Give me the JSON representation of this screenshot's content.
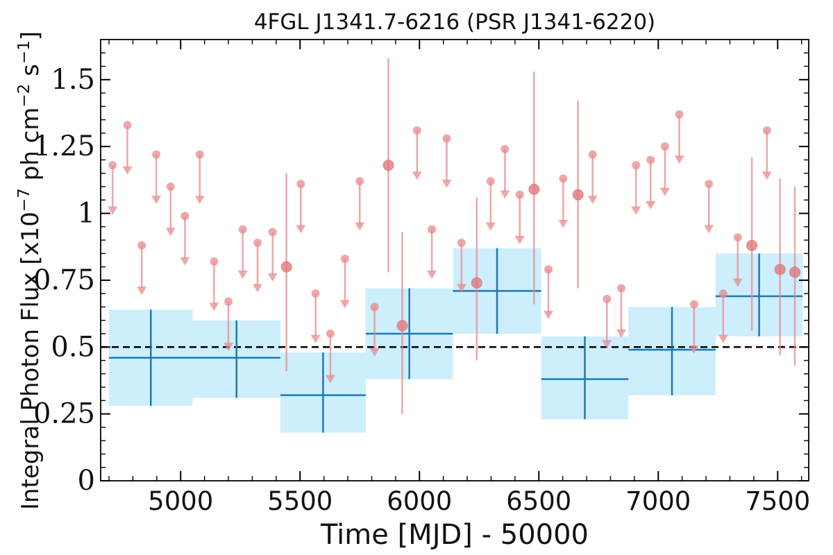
{
  "chart_data": {
    "type": "scatter",
    "title": "4FGL J1341.7-6216 (PSR J1341-6220)",
    "xlabel": "Time [MJD] - 50000",
    "ylabel_parts": {
      "pre": "Integral Photon Flux [x10",
      "exp1": "−7",
      "mid": " ph cm",
      "exp2": "−2",
      "s": " s",
      "exp3": "−1",
      "post": "]"
    },
    "xlim": [
      4665,
      7630
    ],
    "ylim": [
      0,
      1.65
    ],
    "x_ticks": [
      5000,
      5500,
      6000,
      6500,
      7000,
      7500
    ],
    "x_tick_labels": [
      "5000",
      "5500",
      "6000",
      "6500",
      "7000",
      "7500"
    ],
    "y_ticks": [
      0,
      0.25,
      0.5,
      0.75,
      1,
      1.25,
      1.5
    ],
    "y_tick_labels": [
      "0",
      "0.25",
      "0.5",
      "0.75",
      "1",
      "1.25",
      "1.5"
    ],
    "reference_line": {
      "y": 0.5,
      "style": "dashed",
      "color": "#000000"
    },
    "grid": false,
    "colors": {
      "bins": "#1f77b4",
      "band": "#cdeefc",
      "points": "#e8898c",
      "arrows": "#e8898c"
    },
    "series": [
      {
        "kind": "binned-with-error-band",
        "bins": [
          {
            "x0": 4700,
            "x1": 5050,
            "y": 0.46,
            "ylo": 0.28,
            "yhi": 0.64
          },
          {
            "x0": 5050,
            "x1": 5418,
            "y": 0.46,
            "ylo": 0.31,
            "yhi": 0.6
          },
          {
            "x0": 5418,
            "x1": 5775,
            "y": 0.32,
            "ylo": 0.18,
            "yhi": 0.48
          },
          {
            "x0": 5775,
            "x1": 6140,
            "y": 0.55,
            "ylo": 0.38,
            "yhi": 0.72
          },
          {
            "x0": 6140,
            "x1": 6510,
            "y": 0.71,
            "ylo": 0.55,
            "yhi": 0.87
          },
          {
            "x0": 6510,
            "x1": 6875,
            "y": 0.38,
            "ylo": 0.23,
            "yhi": 0.54
          },
          {
            "x0": 6875,
            "x1": 7240,
            "y": 0.49,
            "ylo": 0.32,
            "yhi": 0.65
          },
          {
            "x0": 7240,
            "x1": 7605,
            "y": 0.69,
            "ylo": 0.54,
            "yhi": 0.85
          }
        ]
      },
      {
        "kind": "points-with-errors",
        "points": [
          {
            "x": 5443,
            "y": 0.8,
            "ylo": 0.41,
            "yhi": 1.15
          },
          {
            "x": 5870,
            "y": 1.18,
            "ylo": 0.78,
            "yhi": 1.58
          },
          {
            "x": 5928,
            "y": 0.58,
            "ylo": 0.25,
            "yhi": 0.93
          },
          {
            "x": 6240,
            "y": 0.74,
            "ylo": 0.45,
            "yhi": 1.06
          },
          {
            "x": 6480,
            "y": 1.09,
            "ylo": 0.66,
            "yhi": 1.53
          },
          {
            "x": 6664,
            "y": 1.07,
            "ylo": 0.72,
            "yhi": 1.42
          },
          {
            "x": 7392,
            "y": 0.88,
            "ylo": 0.56,
            "yhi": 1.21
          },
          {
            "x": 7510,
            "y": 0.79,
            "ylo": 0.47,
            "yhi": 1.13
          },
          {
            "x": 7572,
            "y": 0.78,
            "ylo": 0.43,
            "yhi": 1.1
          }
        ]
      },
      {
        "kind": "upper-limits",
        "points": [
          {
            "x": 4715,
            "y": 1.18
          },
          {
            "x": 4777,
            "y": 1.33
          },
          {
            "x": 4837,
            "y": 0.88
          },
          {
            "x": 4898,
            "y": 1.22
          },
          {
            "x": 4958,
            "y": 1.1
          },
          {
            "x": 5018,
            "y": 0.99
          },
          {
            "x": 5080,
            "y": 1.22
          },
          {
            "x": 5140,
            "y": 0.82
          },
          {
            "x": 5200,
            "y": 0.67
          },
          {
            "x": 5260,
            "y": 0.94
          },
          {
            "x": 5322,
            "y": 0.89
          },
          {
            "x": 5385,
            "y": 0.93
          },
          {
            "x": 5503,
            "y": 1.11
          },
          {
            "x": 5565,
            "y": 0.7
          },
          {
            "x": 5627,
            "y": 0.55
          },
          {
            "x": 5688,
            "y": 0.83
          },
          {
            "x": 5750,
            "y": 1.12
          },
          {
            "x": 5812,
            "y": 0.65
          },
          {
            "x": 5990,
            "y": 1.31
          },
          {
            "x": 6052,
            "y": 0.94
          },
          {
            "x": 6114,
            "y": 1.28
          },
          {
            "x": 6176,
            "y": 0.89
          },
          {
            "x": 6298,
            "y": 1.12
          },
          {
            "x": 6358,
            "y": 1.24
          },
          {
            "x": 6420,
            "y": 1.07
          },
          {
            "x": 6540,
            "y": 0.79
          },
          {
            "x": 6602,
            "y": 1.13
          },
          {
            "x": 6725,
            "y": 1.22
          },
          {
            "x": 6785,
            "y": 0.68
          },
          {
            "x": 6845,
            "y": 0.72
          },
          {
            "x": 6907,
            "y": 1.18
          },
          {
            "x": 6968,
            "y": 1.2
          },
          {
            "x": 7028,
            "y": 1.25
          },
          {
            "x": 7088,
            "y": 1.37
          },
          {
            "x": 7150,
            "y": 0.66
          },
          {
            "x": 7212,
            "y": 1.11
          },
          {
            "x": 7272,
            "y": 0.7
          },
          {
            "x": 7333,
            "y": 0.91
          },
          {
            "x": 7455,
            "y": 1.31
          }
        ]
      }
    ]
  }
}
